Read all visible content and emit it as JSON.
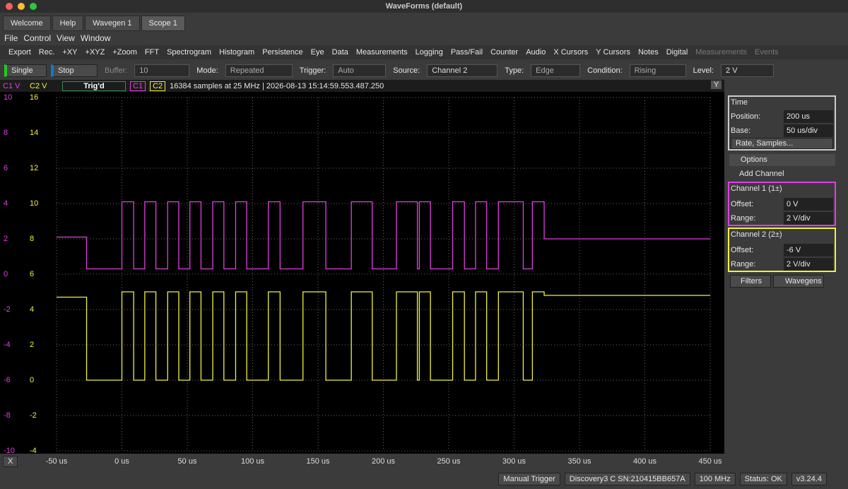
{
  "window": {
    "title": "WaveForms (default)"
  },
  "tabs": [
    "Welcome",
    "Help",
    "Wavegen 1",
    "Scope 1"
  ],
  "menu": [
    "File",
    "Control",
    "View",
    "Window"
  ],
  "tools": [
    "Export",
    "Rec.",
    "+XY",
    "+XYZ",
    "+Zoom",
    "FFT",
    "Spectrogram",
    "Histogram",
    "Persistence",
    "Eye",
    "Data",
    "Measurements",
    "Logging",
    "Pass/Fail",
    "Counter",
    "Audio",
    "X Cursors",
    "Y Cursors",
    "Notes",
    "Digital"
  ],
  "tools_disabled": [
    "Measurements",
    "Events"
  ],
  "control": {
    "single": "Single",
    "stop": "Stop",
    "buffer_label": "Buffer:",
    "buffer": "10",
    "mode_label": "Mode:",
    "mode": "Repeated",
    "trigger_label": "Trigger:",
    "trigger": "Auto",
    "source_label": "Source:",
    "source": "Channel 2",
    "type_label": "Type:",
    "type": "Edge",
    "condition_label": "Condition:",
    "condition": "Rising",
    "level_label": "Level:",
    "level": "2 V"
  },
  "plot_header": {
    "c1": "C1 V",
    "c2": "C2 V",
    "state": "Trig'd",
    "badge1": "C1",
    "badge2": "C2",
    "info": "16384 samples at 25 MHz | 2026-08-13 15:14:59.553.487.250",
    "y_button": "Y"
  },
  "scope": {
    "xlim": [
      -50,
      450
    ],
    "xticks": [
      {
        "value": -50,
        "label": "-50 us"
      },
      {
        "value": 0,
        "label": "0 us"
      },
      {
        "value": 50,
        "label": "50 us"
      },
      {
        "value": 100,
        "label": "100 us"
      },
      {
        "value": 150,
        "label": "150 us"
      },
      {
        "value": 200,
        "label": "200 us"
      },
      {
        "value": 250,
        "label": "250 us"
      },
      {
        "value": 300,
        "label": "300 us"
      },
      {
        "value": 350,
        "label": "350 us"
      },
      {
        "value": 400,
        "label": "400 us"
      },
      {
        "value": 450,
        "label": "450 us"
      }
    ],
    "ylim": [
      -10,
      10
    ],
    "yticks": [
      10,
      8,
      6,
      4,
      2,
      0,
      -2,
      -4,
      -6,
      -8,
      -10
    ],
    "y2lim": [
      -4,
      16
    ],
    "y2ticks": [
      16,
      14,
      12,
      10,
      8,
      6,
      4,
      2,
      0,
      -2,
      -4
    ],
    "grid": true,
    "traces": [
      {
        "name": "C1 V",
        "color": "#e23ee2",
        "x": [
          -50,
          -27,
          0,
          9,
          17.5,
          26,
          35,
          43.5,
          52,
          60.5,
          69.5,
          78,
          87,
          95.5,
          112,
          121,
          138.5,
          156,
          175.5,
          191.5,
          210,
          226,
          227.5,
          236,
          253,
          262,
          270.5,
          279,
          288,
          307,
          314,
          323,
          450
        ],
        "values": [
          2.1,
          0.3,
          4.1,
          0.3,
          4.1,
          0.3,
          4.1,
          0.3,
          4.1,
          0.3,
          4.1,
          0.3,
          4.1,
          0.3,
          4.1,
          0.3,
          4.1,
          0.3,
          4.1,
          0.3,
          4.1,
          0.3,
          4.1,
          0.3,
          4.1,
          0.3,
          4.1,
          0.3,
          4.1,
          0.3,
          4.1,
          2.0,
          2.0
        ]
      },
      {
        "name": "C2 V",
        "axis": "y2",
        "color": "#f2f23a",
        "x": [
          -50,
          -27,
          0,
          9,
          17.5,
          26,
          35,
          43.5,
          52,
          60.5,
          69.5,
          78,
          87,
          95.5,
          112,
          121,
          138.5,
          156,
          175.5,
          191.5,
          210,
          226,
          227.5,
          236,
          253,
          262,
          270.5,
          279,
          288,
          307,
          314,
          323,
          450
        ],
        "values": [
          4.7,
          0,
          5,
          0,
          5,
          0,
          5,
          0,
          5,
          0,
          5,
          0,
          5,
          0,
          5,
          0,
          5,
          0,
          5,
          0,
          5,
          0,
          5,
          0,
          5,
          0,
          5,
          0,
          5,
          0,
          5,
          4.8,
          4.8
        ]
      }
    ]
  },
  "panel": {
    "time": "Time",
    "position_label": "Position:",
    "position": "200 us",
    "base_label": "Base:",
    "base": "50 us/div",
    "rate": "Rate, Samples...",
    "options": "Options",
    "add_channel": "Add Channel",
    "ch1": {
      "title": "Channel 1 (1±)",
      "offset_label": "Offset:",
      "offset": "0 V",
      "range_label": "Range:",
      "range": "2 V/div"
    },
    "ch2": {
      "title": "Channel 2 (2±)",
      "offset_label": "Offset:",
      "offset": "-6 V",
      "range_label": "Range:",
      "range": "2 V/div"
    },
    "filters": "Filters",
    "wavegens": "Wavegens"
  },
  "status": {
    "x": "X",
    "manual": "Manual Trigger",
    "device": "Discovery3 C SN:210415BB657A",
    "clock": "100 MHz",
    "state": "Status: OK",
    "version": "v3.24.4"
  }
}
